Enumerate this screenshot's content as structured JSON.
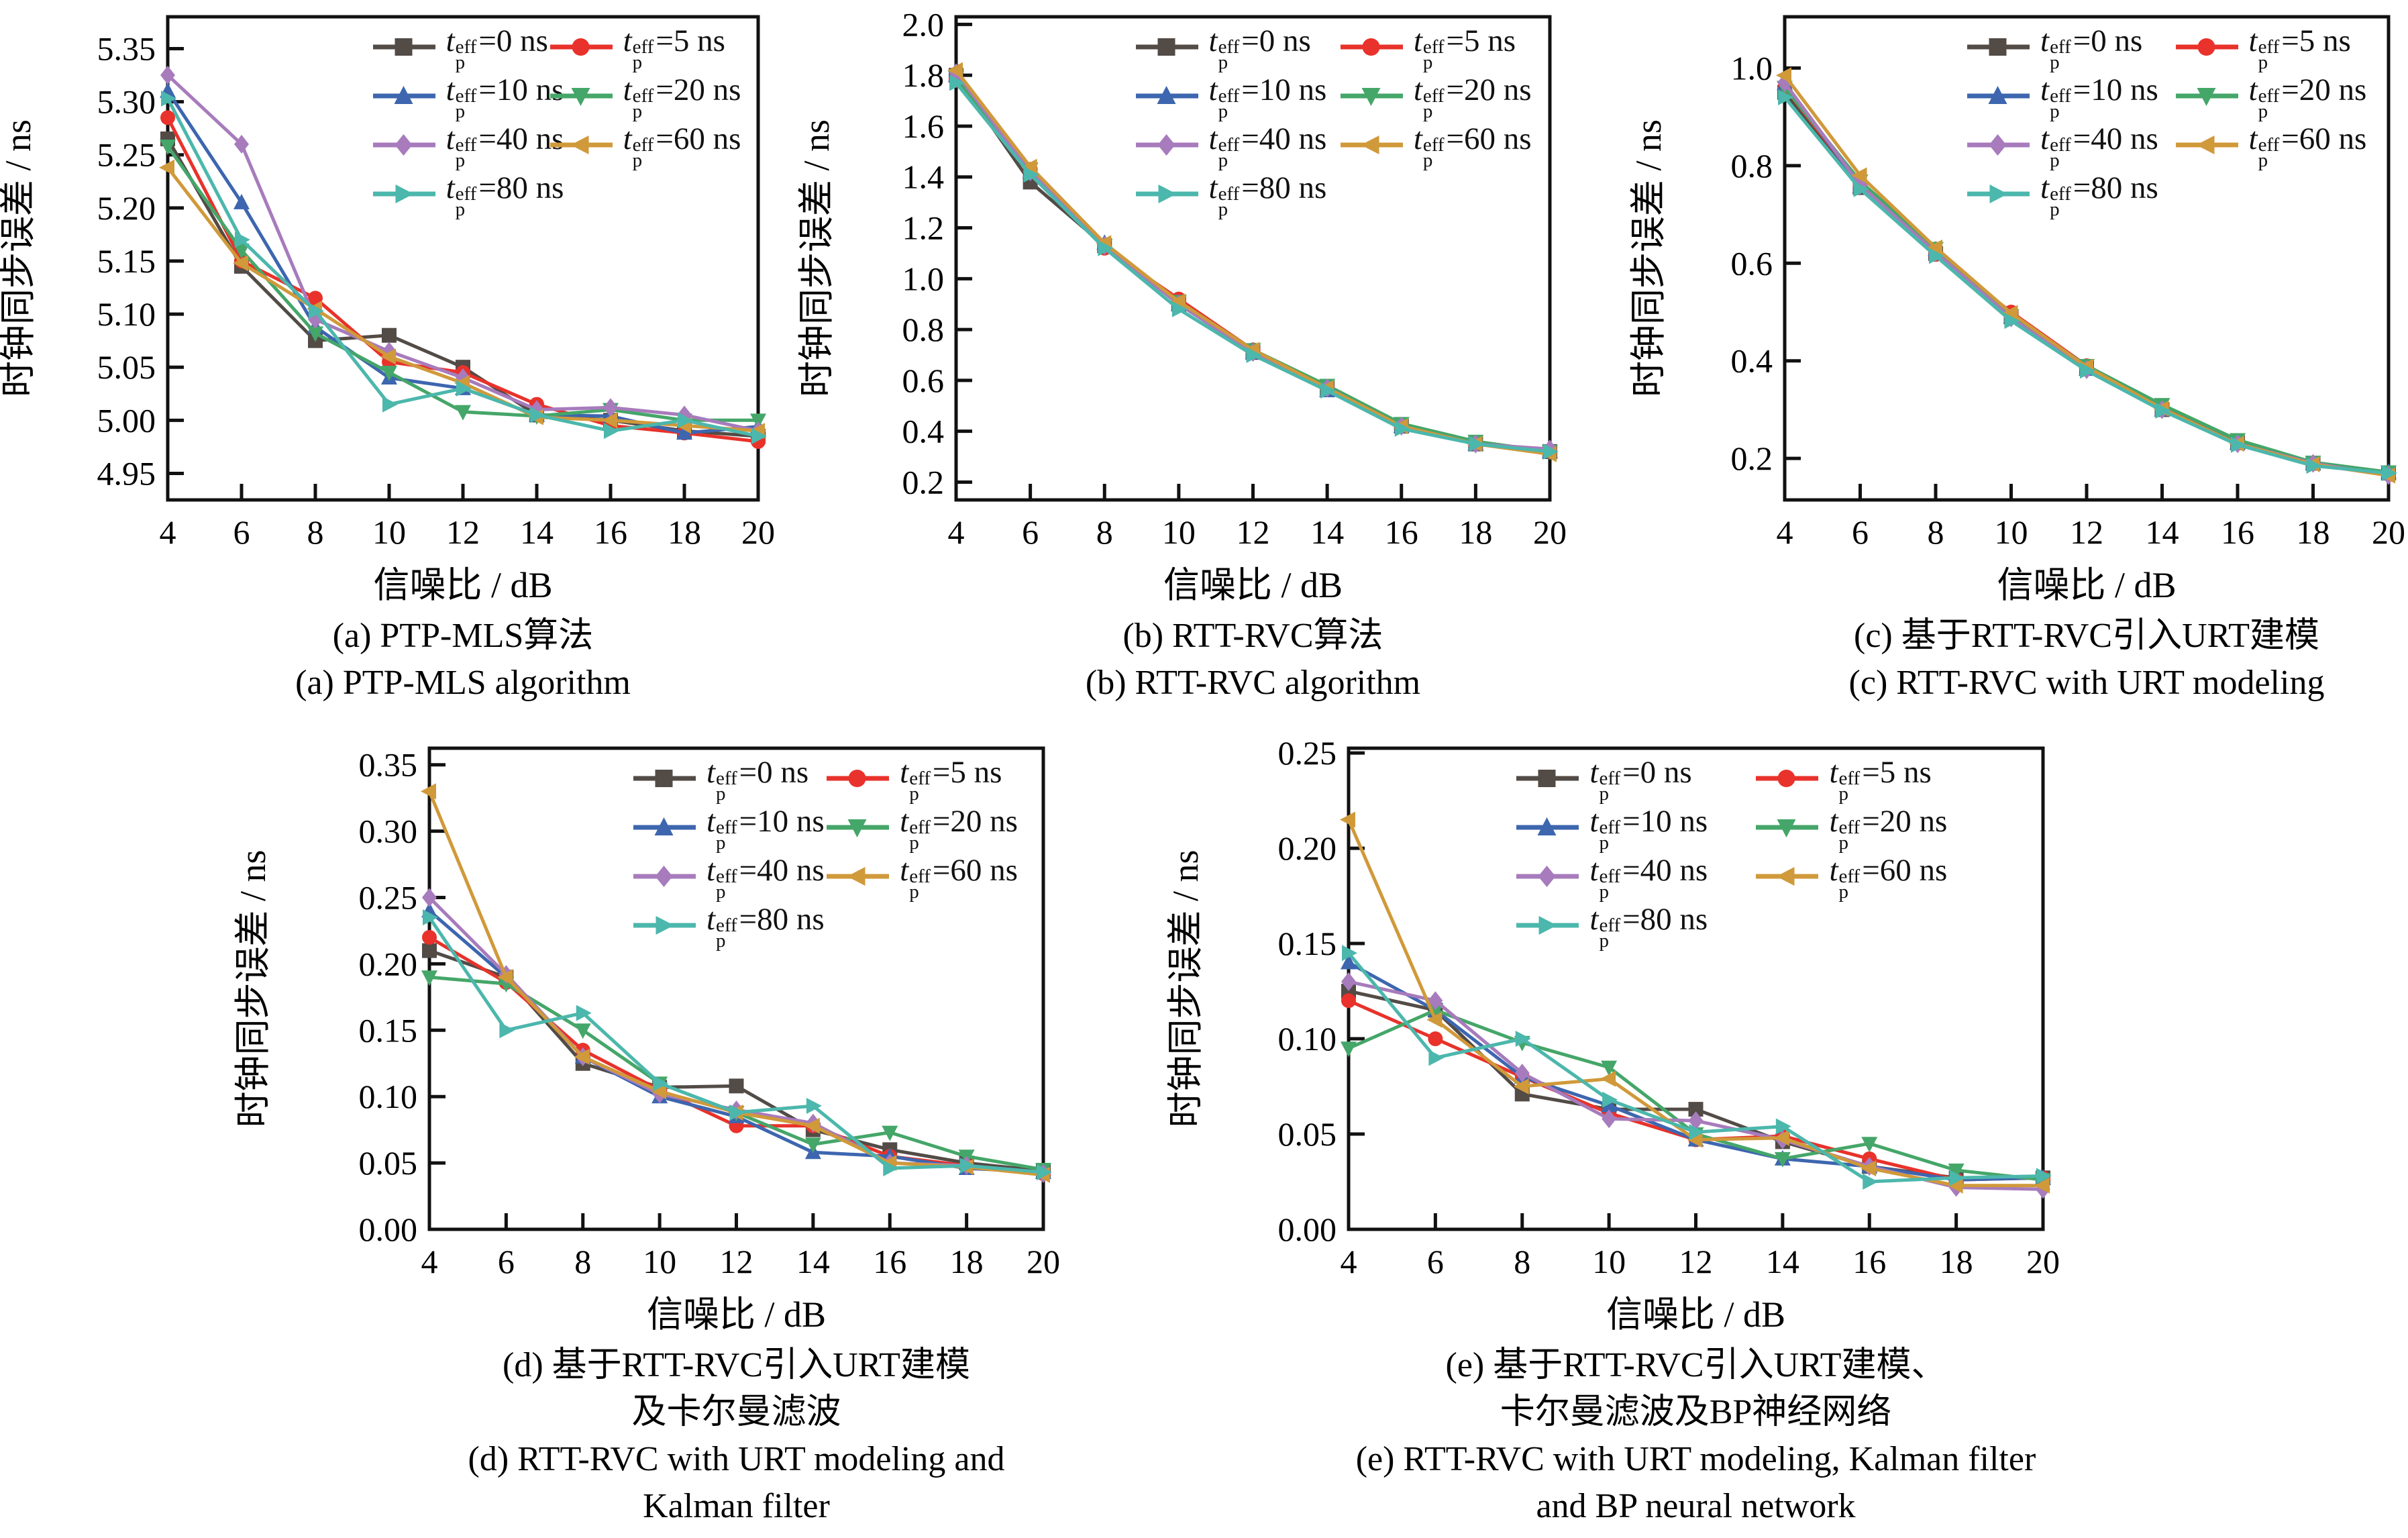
{
  "figure": {
    "background": "#ffffff"
  },
  "axes_common": {
    "xlabel": "信噪比 / dB",
    "ylabel": "时钟同步误差 / ns",
    "x_ticks": [
      4,
      6,
      8,
      10,
      12,
      14,
      16,
      18,
      20
    ]
  },
  "legend": {
    "var": "t",
    "sup": "eff",
    "sub": "p",
    "eq": "=",
    "unit": "ns",
    "items": [
      {
        "id": "tp0",
        "value": "0",
        "color": "#524b46",
        "marker": "square"
      },
      {
        "id": "tp5",
        "value": "5",
        "color": "#e8322b",
        "marker": "circle"
      },
      {
        "id": "tp10",
        "value": "10",
        "color": "#3d66af",
        "marker": "triangle-up"
      },
      {
        "id": "tp20",
        "value": "20",
        "color": "#45a669",
        "marker": "triangle-down"
      },
      {
        "id": "tp40",
        "value": "40",
        "color": "#a77bbc",
        "marker": "diamond"
      },
      {
        "id": "tp60",
        "value": "60",
        "color": "#d0993a",
        "marker": "triangle-left"
      },
      {
        "id": "tp80",
        "value": "80",
        "color": "#4cb7ac",
        "marker": "triangle-right"
      }
    ]
  },
  "chart_data": [
    {
      "id": "a",
      "type": "line",
      "captions": [
        "(a) PTP-MLS算法",
        "(a) PTP-MLS algorithm"
      ],
      "x": [
        4,
        6,
        8,
        10,
        12,
        14,
        16,
        18,
        20
      ],
      "ylim": [
        4.925,
        5.38
      ],
      "ytick_vals": [
        4.95,
        5.0,
        5.05,
        5.1,
        5.15,
        5.2,
        5.25,
        5.3,
        5.35
      ],
      "ytick_labels": [
        "4.95",
        "5.00",
        "5.05",
        "5.10",
        "5.15",
        "5.20",
        "5.25",
        "5.30",
        "5.35"
      ],
      "series": [
        {
          "id": "tp0",
          "values": [
            5.265,
            5.145,
            5.075,
            5.08,
            5.05,
            5.005,
            5.0,
            4.99,
            4.985
          ]
        },
        {
          "id": "tp5",
          "values": [
            5.285,
            5.15,
            5.115,
            5.055,
            5.045,
            5.015,
            4.995,
            4.988,
            4.98
          ]
        },
        {
          "id": "tp10",
          "values": [
            5.31,
            5.205,
            5.088,
            5.04,
            5.03,
            5.005,
            5.004,
            4.988,
            4.994
          ]
        },
        {
          "id": "tp20",
          "values": [
            5.258,
            5.16,
            5.082,
            5.045,
            5.008,
            5.004,
            5.01,
            5.0,
            5.0
          ]
        },
        {
          "id": "tp40",
          "values": [
            5.325,
            5.26,
            5.095,
            5.065,
            5.04,
            5.01,
            5.012,
            5.005,
            4.99
          ]
        },
        {
          "id": "tp60",
          "values": [
            5.238,
            5.148,
            5.105,
            5.06,
            5.035,
            5.003,
            5.0,
            4.995,
            4.99
          ]
        },
        {
          "id": "tp80",
          "values": [
            5.303,
            5.17,
            5.103,
            5.015,
            5.03,
            5.005,
            4.99,
            5.0,
            4.985
          ]
        }
      ]
    },
    {
      "id": "b",
      "type": "line",
      "captions": [
        "(b) RTT-RVC算法",
        "(b) RTT-RVC algorithm"
      ],
      "x": [
        4,
        6,
        8,
        10,
        12,
        14,
        16,
        18,
        20
      ],
      "ylim": [
        0.13,
        2.03
      ],
      "ytick_vals": [
        0.2,
        0.4,
        0.6,
        0.8,
        1.0,
        1.2,
        1.4,
        1.6,
        1.8,
        2.0
      ],
      "ytick_labels": [
        "0.2",
        "0.4",
        "0.6",
        "0.8",
        "1.0",
        "1.2",
        "1.4",
        "1.6",
        "1.8",
        "2.0"
      ],
      "series": [
        {
          "id": "tp0",
          "values": [
            1.8,
            1.38,
            1.13,
            0.9,
            0.71,
            0.57,
            0.42,
            0.35,
            0.32
          ]
        },
        {
          "id": "tp5",
          "values": [
            1.78,
            1.43,
            1.12,
            0.92,
            0.72,
            0.57,
            0.42,
            0.35,
            0.32
          ]
        },
        {
          "id": "tp10",
          "values": [
            1.8,
            1.42,
            1.14,
            0.9,
            0.71,
            0.56,
            0.42,
            0.35,
            0.32
          ]
        },
        {
          "id": "tp20",
          "values": [
            1.79,
            1.43,
            1.13,
            0.91,
            0.72,
            0.58,
            0.43,
            0.36,
            0.32
          ]
        },
        {
          "id": "tp40",
          "values": [
            1.81,
            1.42,
            1.13,
            0.9,
            0.71,
            0.57,
            0.42,
            0.35,
            0.33
          ]
        },
        {
          "id": "tp60",
          "values": [
            1.82,
            1.44,
            1.14,
            0.91,
            0.72,
            0.57,
            0.42,
            0.35,
            0.31
          ]
        },
        {
          "id": "tp80",
          "values": [
            1.77,
            1.41,
            1.12,
            0.88,
            0.7,
            0.56,
            0.41,
            0.35,
            0.32
          ]
        }
      ]
    },
    {
      "id": "c",
      "type": "line",
      "captions": [
        "(c) 基于RTT-RVC引入URT建模",
        "(c) RTT-RVC with URT modeling"
      ],
      "x": [
        4,
        6,
        8,
        10,
        12,
        14,
        16,
        18,
        20
      ],
      "ylim": [
        0.115,
        1.105
      ],
      "ytick_vals": [
        0.2,
        0.4,
        0.6,
        0.8,
        1.0
      ],
      "ytick_labels": [
        "0.2",
        "0.4",
        "0.6",
        "0.8",
        "1.0"
      ],
      "series": [
        {
          "id": "tp0",
          "values": [
            0.95,
            0.755,
            0.62,
            0.49,
            0.385,
            0.3,
            0.232,
            0.19,
            0.17
          ]
        },
        {
          "id": "tp5",
          "values": [
            0.96,
            0.76,
            0.618,
            0.5,
            0.39,
            0.308,
            0.232,
            0.19,
            0.17
          ]
        },
        {
          "id": "tp10",
          "values": [
            0.968,
            0.758,
            0.628,
            0.49,
            0.383,
            0.3,
            0.232,
            0.19,
            0.172
          ]
        },
        {
          "id": "tp20",
          "values": [
            0.96,
            0.768,
            0.63,
            0.492,
            0.39,
            0.31,
            0.238,
            0.192,
            0.172
          ]
        },
        {
          "id": "tp40",
          "values": [
            0.97,
            0.76,
            0.622,
            0.488,
            0.382,
            0.3,
            0.23,
            0.19,
            0.165
          ]
        },
        {
          "id": "tp60",
          "values": [
            0.985,
            0.78,
            0.632,
            0.498,
            0.388,
            0.302,
            0.23,
            0.188,
            0.165
          ]
        },
        {
          "id": "tp80",
          "values": [
            0.94,
            0.752,
            0.615,
            0.482,
            0.38,
            0.298,
            0.228,
            0.185,
            0.17
          ]
        }
      ]
    },
    {
      "id": "d",
      "type": "line",
      "captions": [
        "(d) 基于RTT-RVC引入URT建模",
        "及卡尔曼滤波",
        "(d) RTT-RVC with URT modeling and",
        "Kalman filter"
      ],
      "x": [
        4,
        6,
        8,
        10,
        12,
        14,
        16,
        18,
        20
      ],
      "ylim": [
        0,
        0.3625
      ],
      "ytick_vals": [
        0.0,
        0.05,
        0.1,
        0.15,
        0.2,
        0.25,
        0.3,
        0.35
      ],
      "ytick_labels": [
        "0.00",
        "0.05",
        "0.10",
        "0.15",
        "0.20",
        "0.25",
        "0.30",
        "0.35"
      ],
      "series": [
        {
          "id": "tp0",
          "values": [
            0.21,
            0.19,
            0.125,
            0.107,
            0.108,
            0.075,
            0.06,
            0.05,
            0.044
          ]
        },
        {
          "id": "tp5",
          "values": [
            0.22,
            0.186,
            0.135,
            0.105,
            0.078,
            0.078,
            0.055,
            0.048,
            0.042
          ]
        },
        {
          "id": "tp10",
          "values": [
            0.24,
            0.19,
            0.13,
            0.1,
            0.085,
            0.058,
            0.055,
            0.046,
            0.043
          ]
        },
        {
          "id": "tp20",
          "values": [
            0.19,
            0.185,
            0.15,
            0.11,
            0.088,
            0.064,
            0.073,
            0.055,
            0.045
          ]
        },
        {
          "id": "tp40",
          "values": [
            0.25,
            0.192,
            0.13,
            0.102,
            0.09,
            0.08,
            0.05,
            0.048,
            0.042
          ]
        },
        {
          "id": "tp60",
          "values": [
            0.33,
            0.19,
            0.13,
            0.104,
            0.088,
            0.078,
            0.05,
            0.047,
            0.041
          ]
        },
        {
          "id": "tp80",
          "values": [
            0.235,
            0.15,
            0.163,
            0.11,
            0.088,
            0.093,
            0.046,
            0.048,
            0.043
          ]
        }
      ]
    },
    {
      "id": "e",
      "type": "line",
      "captions": [
        "(e) 基于RTT-RVC引入URT建模、",
        "卡尔曼滤波及BP神经网络",
        "(e) RTT-RVC with URT modeling, Kalman filter",
        "and BP neural network"
      ],
      "x": [
        4,
        6,
        8,
        10,
        12,
        14,
        16,
        18,
        20
      ],
      "ylim": [
        0,
        0.2525
      ],
      "ytick_vals": [
        0.0,
        0.05,
        0.1,
        0.15,
        0.2,
        0.25
      ],
      "ytick_labels": [
        "0.00",
        "0.05",
        "0.10",
        "0.15",
        "0.20",
        "0.25"
      ],
      "series": [
        {
          "id": "tp0",
          "values": [
            0.125,
            0.115,
            0.071,
            0.063,
            0.063,
            0.046,
            0.033,
            0.027,
            0.027
          ]
        },
        {
          "id": "tp5",
          "values": [
            0.12,
            0.1,
            0.08,
            0.061,
            0.047,
            0.049,
            0.037,
            0.026,
            0.027
          ]
        },
        {
          "id": "tp10",
          "values": [
            0.14,
            0.115,
            0.08,
            0.065,
            0.047,
            0.037,
            0.033,
            0.026,
            0.027
          ]
        },
        {
          "id": "tp20",
          "values": [
            0.095,
            0.115,
            0.098,
            0.085,
            0.05,
            0.037,
            0.045,
            0.031,
            0.026
          ]
        },
        {
          "id": "tp40",
          "values": [
            0.13,
            0.12,
            0.082,
            0.058,
            0.057,
            0.047,
            0.033,
            0.022,
            0.021
          ]
        },
        {
          "id": "tp60",
          "values": [
            0.215,
            0.11,
            0.075,
            0.079,
            0.047,
            0.048,
            0.032,
            0.023,
            0.023
          ]
        },
        {
          "id": "tp80",
          "values": [
            0.145,
            0.09,
            0.1,
            0.068,
            0.051,
            0.054,
            0.025,
            0.027,
            0.028
          ]
        }
      ]
    }
  ]
}
